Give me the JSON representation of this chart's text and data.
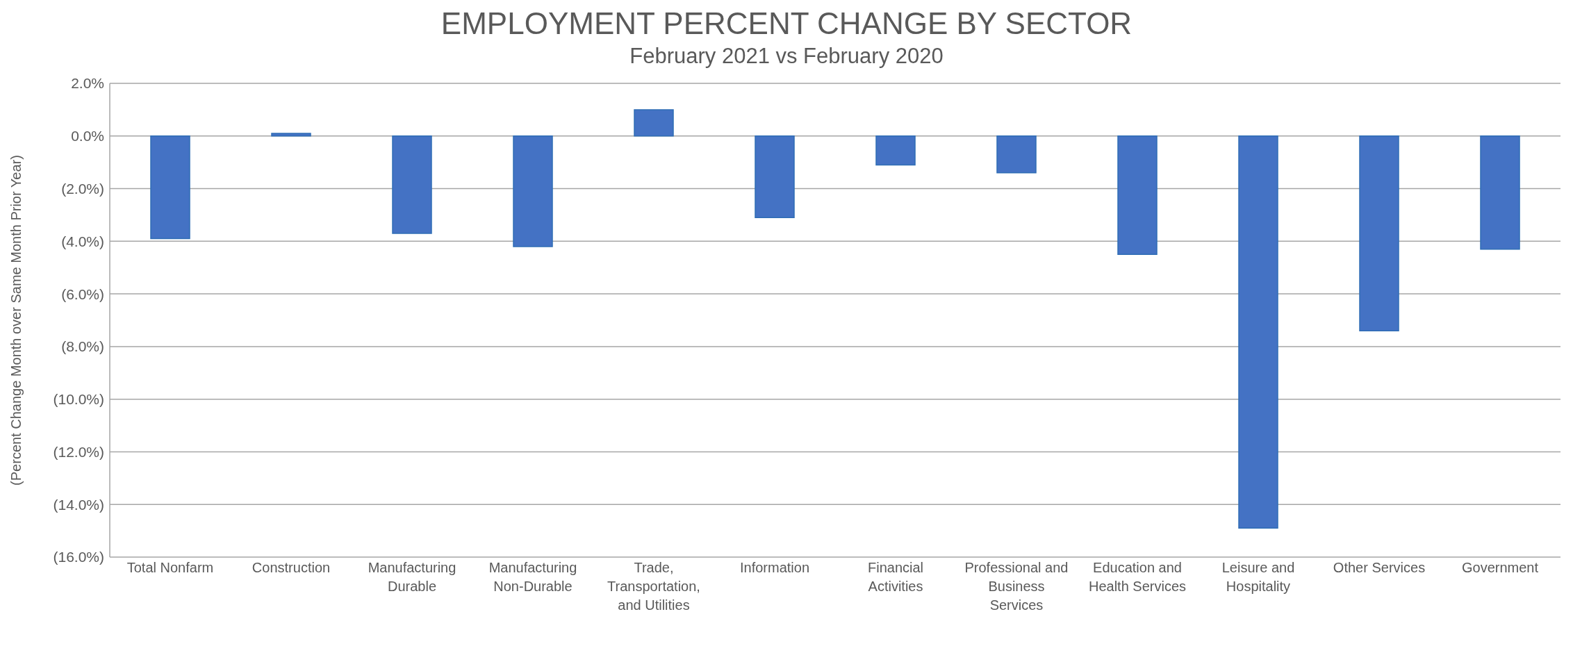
{
  "chart_data": {
    "type": "bar",
    "title": "EMPLOYMENT PERCENT CHANGE BY SECTOR",
    "subtitle": "February 2021 vs February 2020",
    "ylabel": "(Percent Change Month over Same Month Prior Year)",
    "categories": [
      "Total Nonfarm",
      "Construction",
      "Manufacturing Durable",
      "Manufacturing Non-Durable",
      "Trade, Transportation, and Utilities",
      "Information",
      "Financial Activities",
      "Professional and Business Services",
      "Education and Health Services",
      "Leisure and Hospitality",
      "Other Services",
      "Government"
    ],
    "values": [
      -3.9,
      0.1,
      -3.7,
      -4.2,
      1.0,
      -3.1,
      -1.1,
      -1.4,
      -4.5,
      -14.9,
      -7.4,
      -4.3
    ],
    "color": "#4472c4",
    "ylim": [
      -16,
      2
    ],
    "yticks": [
      {
        "value": 2,
        "label": "2.0%"
      },
      {
        "value": 0,
        "label": "0.0%"
      },
      {
        "value": -2,
        "label": "(2.0%)"
      },
      {
        "value": -4,
        "label": "(4.0%)"
      },
      {
        "value": -6,
        "label": "(6.0%)"
      },
      {
        "value": -8,
        "label": "(8.0%)"
      },
      {
        "value": -10,
        "label": "(10.0%)"
      },
      {
        "value": -12,
        "label": "(12.0%)"
      },
      {
        "value": -14,
        "label": "(14.0%)"
      },
      {
        "value": -16,
        "label": "(16.0%)"
      }
    ],
    "grid": "y"
  }
}
